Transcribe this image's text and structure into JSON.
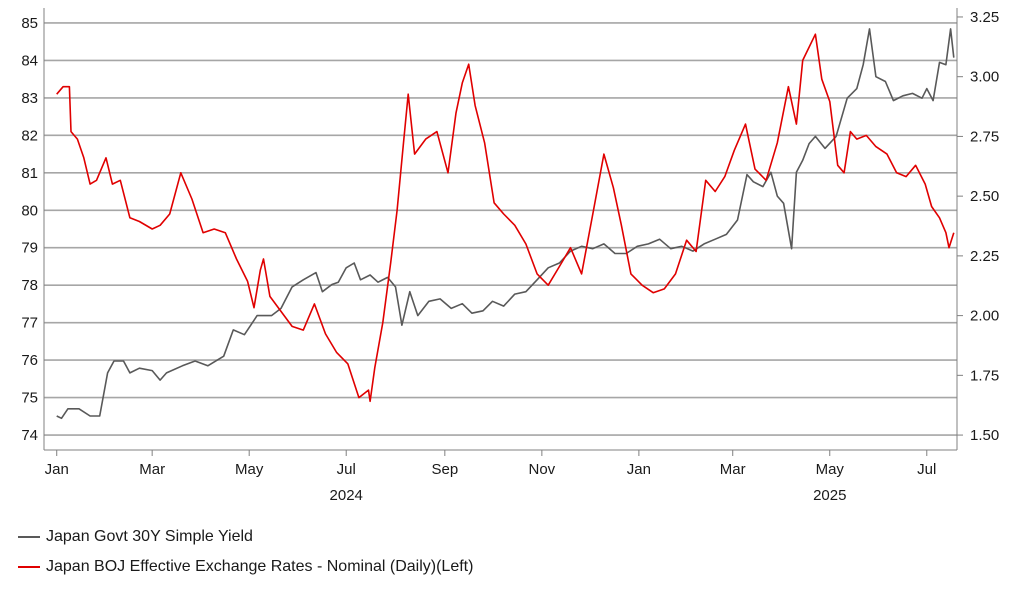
{
  "chart_data": {
    "type": "line",
    "title": "",
    "xlabel": "",
    "x_ticks": [
      "Jan",
      "Mar",
      "May",
      "Jul",
      "Sep",
      "Nov",
      "Jan",
      "Mar",
      "May",
      "Jul"
    ],
    "x_tick_dates": [
      "2024-01-01",
      "2024-03-01",
      "2024-05-01",
      "2024-07-01",
      "2024-09-01",
      "2024-11-01",
      "2025-01-01",
      "2025-03-01",
      "2025-05-01",
      "2025-07-01"
    ],
    "year_labels": [
      {
        "text": "2024",
        "date": "2024-07-01"
      },
      {
        "text": "2025",
        "date": "2025-05-01"
      }
    ],
    "x_range": [
      "2023-12-24",
      "2025-07-20"
    ],
    "y_left": {
      "range": [
        73.6,
        85.4
      ],
      "ticks": [
        "74",
        "75",
        "76",
        "77",
        "78",
        "79",
        "80",
        "81",
        "82",
        "83",
        "84",
        "85"
      ]
    },
    "y_right": {
      "range": [
        1.4375,
        3.2875
      ],
      "ticks": [
        "1.50",
        "1.75",
        "2.00",
        "2.25",
        "2.50",
        "2.75",
        "3.00",
        "3.25"
      ]
    },
    "grid": "horizontal",
    "legend_placement": "bottom-left",
    "series": [
      {
        "name": "Japan Govt 30Y Simple Yield",
        "axis": "right",
        "color": "#595959",
        "points": [
          [
            "2024-01-01",
            1.58
          ],
          [
            "2024-01-04",
            1.57
          ],
          [
            "2024-01-08",
            1.61
          ],
          [
            "2024-01-15",
            1.61
          ],
          [
            "2024-01-22",
            1.58
          ],
          [
            "2024-01-28",
            1.58
          ],
          [
            "2024-02-02",
            1.76
          ],
          [
            "2024-02-06",
            1.81
          ],
          [
            "2024-02-12",
            1.81
          ],
          [
            "2024-02-16",
            1.76
          ],
          [
            "2024-02-22",
            1.78
          ],
          [
            "2024-03-01",
            1.77
          ],
          [
            "2024-03-06",
            1.73
          ],
          [
            "2024-03-10",
            1.76
          ],
          [
            "2024-03-20",
            1.79
          ],
          [
            "2024-03-28",
            1.81
          ],
          [
            "2024-04-05",
            1.79
          ],
          [
            "2024-04-15",
            1.83
          ],
          [
            "2024-04-21",
            1.94
          ],
          [
            "2024-04-28",
            1.92
          ],
          [
            "2024-05-06",
            2.0
          ],
          [
            "2024-05-15",
            2.0
          ],
          [
            "2024-05-21",
            2.03
          ],
          [
            "2024-05-28",
            2.12
          ],
          [
            "2024-06-04",
            2.15
          ],
          [
            "2024-06-12",
            2.18
          ],
          [
            "2024-06-16",
            2.1
          ],
          [
            "2024-06-22",
            2.13
          ],
          [
            "2024-06-26",
            2.14
          ],
          [
            "2024-07-01",
            2.2
          ],
          [
            "2024-07-06",
            2.22
          ],
          [
            "2024-07-10",
            2.15
          ],
          [
            "2024-07-16",
            2.17
          ],
          [
            "2024-07-21",
            2.14
          ],
          [
            "2024-07-27",
            2.16
          ],
          [
            "2024-08-01",
            2.12
          ],
          [
            "2024-08-05",
            1.96
          ],
          [
            "2024-08-10",
            2.1
          ],
          [
            "2024-08-15",
            2.0
          ],
          [
            "2024-08-22",
            2.06
          ],
          [
            "2024-08-29",
            2.07
          ],
          [
            "2024-09-05",
            2.03
          ],
          [
            "2024-09-12",
            2.05
          ],
          [
            "2024-09-18",
            2.01
          ],
          [
            "2024-09-25",
            2.02
          ],
          [
            "2024-10-01",
            2.06
          ],
          [
            "2024-10-08",
            2.04
          ],
          [
            "2024-10-15",
            2.09
          ],
          [
            "2024-10-22",
            2.1
          ],
          [
            "2024-10-29",
            2.15
          ],
          [
            "2024-11-05",
            2.2
          ],
          [
            "2024-11-12",
            2.22
          ],
          [
            "2024-11-19",
            2.27
          ],
          [
            "2024-11-26",
            2.29
          ],
          [
            "2024-12-03",
            2.28
          ],
          [
            "2024-12-10",
            2.3
          ],
          [
            "2024-12-17",
            2.26
          ],
          [
            "2024-12-24",
            2.26
          ],
          [
            "2024-12-31",
            2.29
          ],
          [
            "2025-01-07",
            2.3
          ],
          [
            "2025-01-14",
            2.32
          ],
          [
            "2025-01-21",
            2.28
          ],
          [
            "2025-01-28",
            2.29
          ],
          [
            "2025-02-04",
            2.27
          ],
          [
            "2025-02-11",
            2.3
          ],
          [
            "2025-02-18",
            2.32
          ],
          [
            "2025-02-25",
            2.34
          ],
          [
            "2025-03-04",
            2.4
          ],
          [
            "2025-03-10",
            2.59
          ],
          [
            "2025-03-14",
            2.56
          ],
          [
            "2025-03-20",
            2.54
          ],
          [
            "2025-03-25",
            2.6
          ],
          [
            "2025-03-29",
            2.5
          ],
          [
            "2025-04-02",
            2.47
          ],
          [
            "2025-04-07",
            2.28
          ],
          [
            "2025-04-10",
            2.6
          ],
          [
            "2025-04-14",
            2.65
          ],
          [
            "2025-04-18",
            2.72
          ],
          [
            "2025-04-22",
            2.75
          ],
          [
            "2025-04-28",
            2.7
          ],
          [
            "2025-05-05",
            2.75
          ],
          [
            "2025-05-12",
            2.91
          ],
          [
            "2025-05-18",
            2.95
          ],
          [
            "2025-05-22",
            3.05
          ],
          [
            "2025-05-26",
            3.2
          ],
          [
            "2025-05-30",
            3.0
          ],
          [
            "2025-06-05",
            2.98
          ],
          [
            "2025-06-10",
            2.9
          ],
          [
            "2025-06-16",
            2.92
          ],
          [
            "2025-06-22",
            2.93
          ],
          [
            "2025-06-28",
            2.91
          ],
          [
            "2025-07-01",
            2.95
          ],
          [
            "2025-07-05",
            2.9
          ],
          [
            "2025-07-09",
            3.06
          ],
          [
            "2025-07-13",
            3.05
          ],
          [
            "2025-07-16",
            3.2
          ],
          [
            "2025-07-18",
            3.08
          ]
        ]
      },
      {
        "name": "Japan BOJ Effective Exchange Rates - Nominal (Daily)(Left)",
        "axis": "left",
        "color": "#e00000",
        "points": [
          [
            "2024-01-01",
            83.1
          ],
          [
            "2024-01-05",
            83.3
          ],
          [
            "2024-01-09",
            83.3
          ],
          [
            "2024-01-10",
            82.1
          ],
          [
            "2024-01-14",
            81.9
          ],
          [
            "2024-01-18",
            81.4
          ],
          [
            "2024-01-22",
            80.7
          ],
          [
            "2024-01-26",
            80.8
          ],
          [
            "2024-02-01",
            81.4
          ],
          [
            "2024-02-05",
            80.7
          ],
          [
            "2024-02-10",
            80.8
          ],
          [
            "2024-02-16",
            79.8
          ],
          [
            "2024-02-22",
            79.7
          ],
          [
            "2024-03-01",
            79.5
          ],
          [
            "2024-03-06",
            79.6
          ],
          [
            "2024-03-12",
            79.9
          ],
          [
            "2024-03-19",
            81.0
          ],
          [
            "2024-03-26",
            80.3
          ],
          [
            "2024-04-02",
            79.4
          ],
          [
            "2024-04-09",
            79.5
          ],
          [
            "2024-04-16",
            79.4
          ],
          [
            "2024-04-23",
            78.7
          ],
          [
            "2024-04-30",
            78.1
          ],
          [
            "2024-05-04",
            77.4
          ],
          [
            "2024-05-08",
            78.4
          ],
          [
            "2024-05-10",
            78.7
          ],
          [
            "2024-05-14",
            77.7
          ],
          [
            "2024-05-21",
            77.3
          ],
          [
            "2024-05-28",
            76.9
          ],
          [
            "2024-06-04",
            76.8
          ],
          [
            "2024-06-11",
            77.5
          ],
          [
            "2024-06-18",
            76.7
          ],
          [
            "2024-06-25",
            76.2
          ],
          [
            "2024-07-02",
            75.9
          ],
          [
            "2024-07-09",
            75.0
          ],
          [
            "2024-07-15",
            75.2
          ],
          [
            "2024-07-16",
            74.9
          ],
          [
            "2024-07-19",
            75.8
          ],
          [
            "2024-07-24",
            77.0
          ],
          [
            "2024-07-29",
            78.6
          ],
          [
            "2024-08-02",
            80.0
          ],
          [
            "2024-08-06",
            81.8
          ],
          [
            "2024-08-09",
            83.1
          ],
          [
            "2024-08-13",
            81.5
          ],
          [
            "2024-08-20",
            81.9
          ],
          [
            "2024-08-27",
            82.1
          ],
          [
            "2024-09-03",
            81.0
          ],
          [
            "2024-09-08",
            82.6
          ],
          [
            "2024-09-12",
            83.4
          ],
          [
            "2024-09-16",
            83.9
          ],
          [
            "2024-09-20",
            82.8
          ],
          [
            "2024-09-26",
            81.8
          ],
          [
            "2024-10-02",
            80.2
          ],
          [
            "2024-10-08",
            79.9
          ],
          [
            "2024-10-15",
            79.6
          ],
          [
            "2024-10-22",
            79.1
          ],
          [
            "2024-10-29",
            78.3
          ],
          [
            "2024-11-05",
            78.0
          ],
          [
            "2024-11-12",
            78.5
          ],
          [
            "2024-11-19",
            79.0
          ],
          [
            "2024-11-26",
            78.3
          ],
          [
            "2024-12-03",
            79.9
          ],
          [
            "2024-12-10",
            81.5
          ],
          [
            "2024-12-16",
            80.6
          ],
          [
            "2024-12-21",
            79.6
          ],
          [
            "2024-12-27",
            78.3
          ],
          [
            "2025-01-03",
            78.0
          ],
          [
            "2025-01-10",
            77.8
          ],
          [
            "2025-01-17",
            77.9
          ],
          [
            "2025-01-24",
            78.3
          ],
          [
            "2025-01-31",
            79.2
          ],
          [
            "2025-02-06",
            78.9
          ],
          [
            "2025-02-12",
            80.8
          ],
          [
            "2025-02-18",
            80.5
          ],
          [
            "2025-02-24",
            80.9
          ],
          [
            "2025-03-02",
            81.6
          ],
          [
            "2025-03-09",
            82.3
          ],
          [
            "2025-03-15",
            81.1
          ],
          [
            "2025-03-22",
            80.8
          ],
          [
            "2025-03-29",
            81.8
          ],
          [
            "2025-04-05",
            83.3
          ],
          [
            "2025-04-10",
            82.3
          ],
          [
            "2025-04-14",
            84.0
          ],
          [
            "2025-04-22",
            84.7
          ],
          [
            "2025-04-26",
            83.5
          ],
          [
            "2025-05-01",
            82.9
          ],
          [
            "2025-05-06",
            81.2
          ],
          [
            "2025-05-10",
            81.0
          ],
          [
            "2025-05-14",
            82.1
          ],
          [
            "2025-05-18",
            81.9
          ],
          [
            "2025-05-24",
            82.0
          ],
          [
            "2025-05-30",
            81.7
          ],
          [
            "2025-06-06",
            81.5
          ],
          [
            "2025-06-12",
            81.0
          ],
          [
            "2025-06-18",
            80.9
          ],
          [
            "2025-06-24",
            81.2
          ],
          [
            "2025-06-30",
            80.7
          ],
          [
            "2025-07-04",
            80.1
          ],
          [
            "2025-07-09",
            79.8
          ],
          [
            "2025-07-13",
            79.4
          ],
          [
            "2025-07-15",
            79.0
          ],
          [
            "2025-07-18",
            79.4
          ]
        ]
      }
    ]
  }
}
